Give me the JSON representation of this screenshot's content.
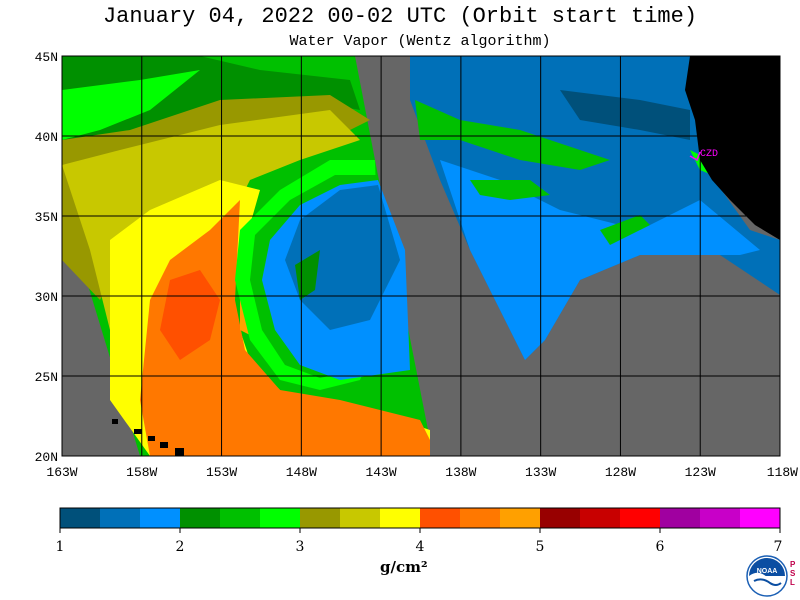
{
  "header": {
    "title": "January 04, 2022  00-02 UTC  (Orbit start time)",
    "subtitle": "Water Vapor (Wentz algorithm)"
  },
  "map": {
    "lat_labels": [
      "45N",
      "40N",
      "35N",
      "30N",
      "25N",
      "20N"
    ],
    "lon_labels": [
      "163W",
      "158W",
      "153W",
      "148W",
      "143W",
      "138W",
      "133W",
      "128W",
      "123W",
      "118W"
    ],
    "station_label": "CZD",
    "colors": {
      "land": "#000000",
      "no_data": "#666666",
      "grid": "#000000",
      "station": "#ff00ff"
    }
  },
  "colorbar": {
    "tick_labels": [
      "1",
      "2",
      "3",
      "4",
      "5",
      "6",
      "7"
    ],
    "unit": "g/cm²",
    "colors": [
      "#00507a",
      "#0070b8",
      "#0090ff",
      "#009000",
      "#00c000",
      "#00ff00",
      "#989800",
      "#c8c800",
      "#ffff00",
      "#ff5000",
      "#ff7800",
      "#ffa000",
      "#980000",
      "#c80000",
      "#ff0000",
      "#a000a0",
      "#c800c8",
      "#ff00ff"
    ]
  },
  "logo": {
    "noaa_text": "NOAA",
    "psl_text": "P S L"
  }
}
